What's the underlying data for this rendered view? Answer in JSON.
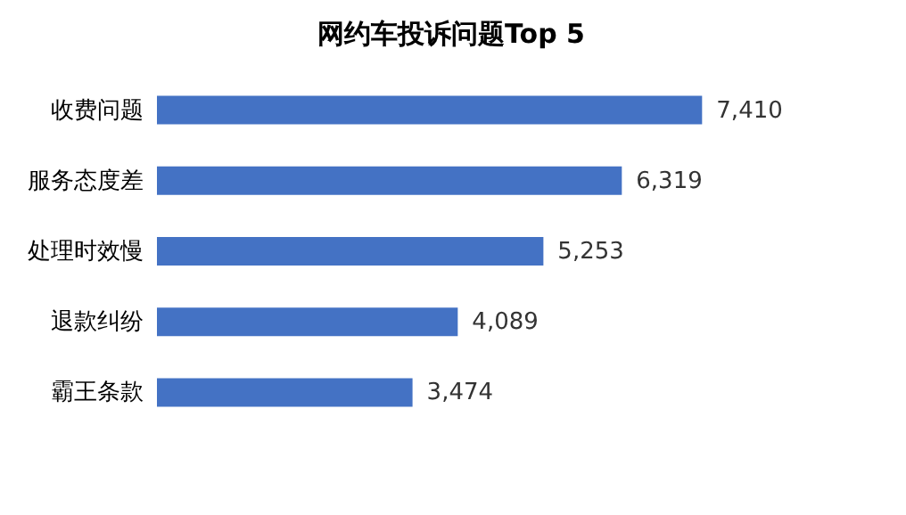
{
  "chart_data": {
    "type": "bar",
    "orientation": "horizontal",
    "title": "网约车投诉问题Top 5",
    "categories": [
      "收费问题",
      "服务态度差",
      "处理时效慢",
      "退款纠纷",
      "霸王条款"
    ],
    "values": [
      7410,
      6319,
      5253,
      4089,
      3474
    ],
    "value_labels": [
      "7,410",
      "6,319",
      "5,253",
      "4,089",
      "3,474"
    ],
    "color": "#4472c4",
    "data_labels": true,
    "grid": false,
    "tick_labels": "y"
  }
}
